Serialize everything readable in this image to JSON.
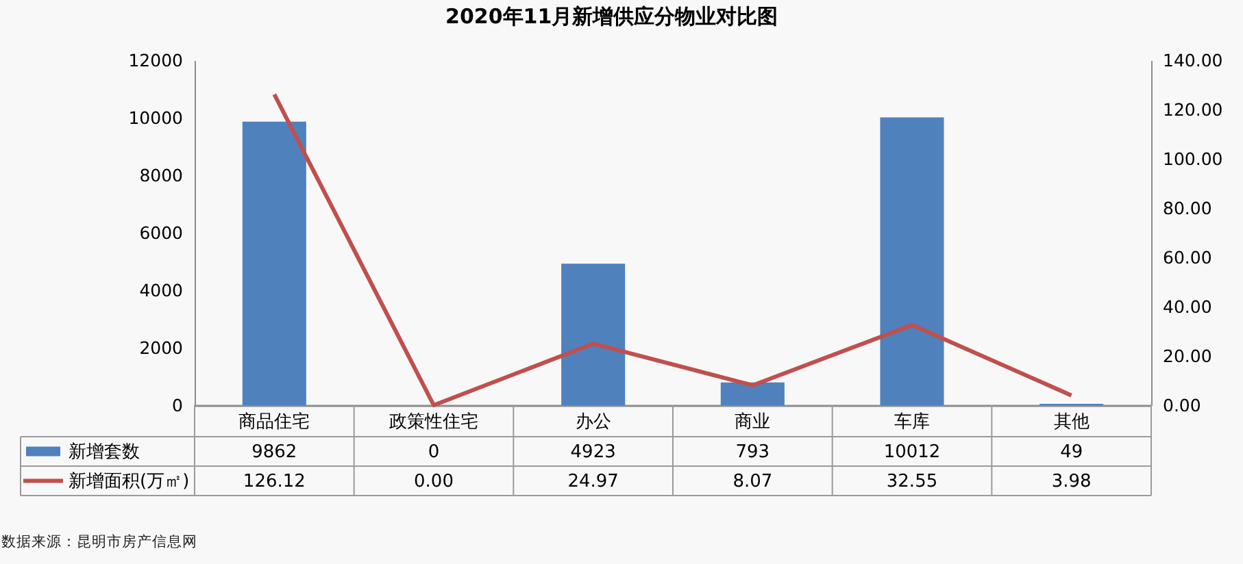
{
  "chart_data": {
    "type": "bar",
    "title": "2020年11月新增供应分物业对比图",
    "categories": [
      "商品住宅",
      "政策性住宅",
      "办公",
      "商业",
      "车库",
      "其他"
    ],
    "series": [
      {
        "name": "新增套数",
        "color": "#4f81bd",
        "values": [
          9862,
          0,
          4923,
          793,
          10012,
          49
        ],
        "value_labels": [
          "9862",
          "0",
          "4923",
          "793",
          "10012",
          "49"
        ]
      },
      {
        "name": "新增面积(万㎡)",
        "type": "line",
        "axis": "y2",
        "color": "#c0504d",
        "values": [
          126.12,
          0.0,
          24.97,
          8.07,
          32.55,
          3.98
        ],
        "value_labels": [
          "126.12",
          "0.00",
          "24.97",
          "8.07",
          "32.55",
          "3.98"
        ]
      }
    ],
    "ylim": [
      0,
      12000
    ],
    "yticks": [
      0,
      2000,
      4000,
      6000,
      8000,
      10000,
      12000
    ],
    "y2lim": [
      0,
      140
    ],
    "y2ticks": [
      {
        "value": 0,
        "label": "0.00"
      },
      {
        "value": 20,
        "label": "20.00"
      },
      {
        "value": 40,
        "label": "40.00"
      },
      {
        "value": 60,
        "label": "60.00"
      },
      {
        "value": 80,
        "label": "80.00"
      },
      {
        "value": 100,
        "label": "100.00"
      },
      {
        "value": 120,
        "label": "120.00"
      },
      {
        "value": 140,
        "label": "140.00"
      }
    ],
    "legend": "bottom",
    "annotations": [
      "数据来源：昆明市房产信息网"
    ]
  }
}
